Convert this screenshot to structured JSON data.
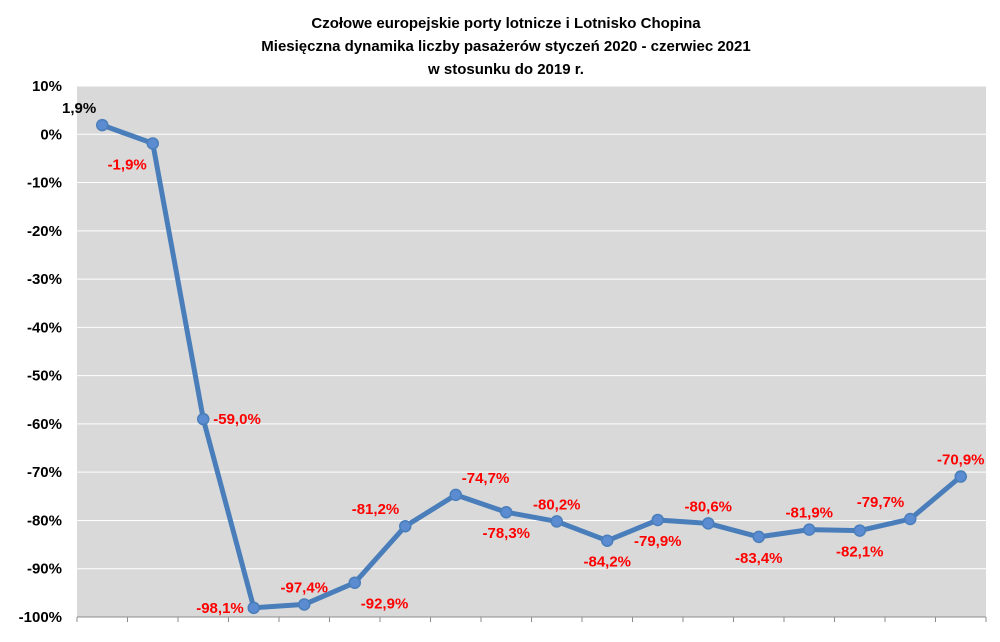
{
  "chart_data": {
    "type": "line",
    "title_lines": [
      "Czołowe europejskie porty lotnicze i Lotnisko Chopina",
      "Miesięczna dynamika liczby pasażerów styczeń 2020 - czerwiec 2021",
      "w stosunku do 2019 r."
    ],
    "xlabel": "",
    "ylabel": "",
    "ylim": [
      -100,
      10
    ],
    "yticks": [
      10,
      0,
      -10,
      -20,
      -30,
      -40,
      -50,
      -60,
      -70,
      -80,
      -90,
      -100
    ],
    "ytick_labels": [
      "10%",
      "0%",
      "-10%",
      "-20%",
      "-30%",
      "-40%",
      "-50%",
      "-60%",
      "-70%",
      "-80%",
      "-90%",
      "-100%"
    ],
    "grid": true,
    "legend": "none",
    "series": [
      {
        "values": [
          1.9,
          -1.9,
          -59.0,
          -98.1,
          -97.4,
          -92.9,
          -81.2,
          -74.7,
          -78.3,
          -80.2,
          -84.2,
          -79.9,
          -80.6,
          -83.4,
          -81.9,
          -82.1,
          -79.7,
          -70.9
        ],
        "labels": [
          "1,9%",
          "-1,9%",
          "-59,0%",
          "-98,1%",
          "-97,4%",
          "-92,9%",
          "-81,2%",
          "-74,7%",
          "-78,3%",
          "-80,2%",
          "-84,2%",
          "-79,9%",
          "-80,6%",
          "-83,4%",
          "-81,9%",
          "-82,1%",
          "-79,7%",
          "-70,9%"
        ],
        "label_positions": [
          "above-left",
          "below-left",
          "right",
          "left",
          "above",
          "below-right",
          "above-left",
          "above-right",
          "below",
          "above",
          "below",
          "below",
          "above",
          "below",
          "above",
          "below",
          "above-left",
          "above"
        ]
      }
    ],
    "colors": {
      "line": "#4a7ebb",
      "marker": "#5b8bd0",
      "plot_background": "#d9d9d9",
      "gridline": "#ffffff",
      "label_positive": "#000000",
      "label_negative": "#ff0000"
    }
  }
}
